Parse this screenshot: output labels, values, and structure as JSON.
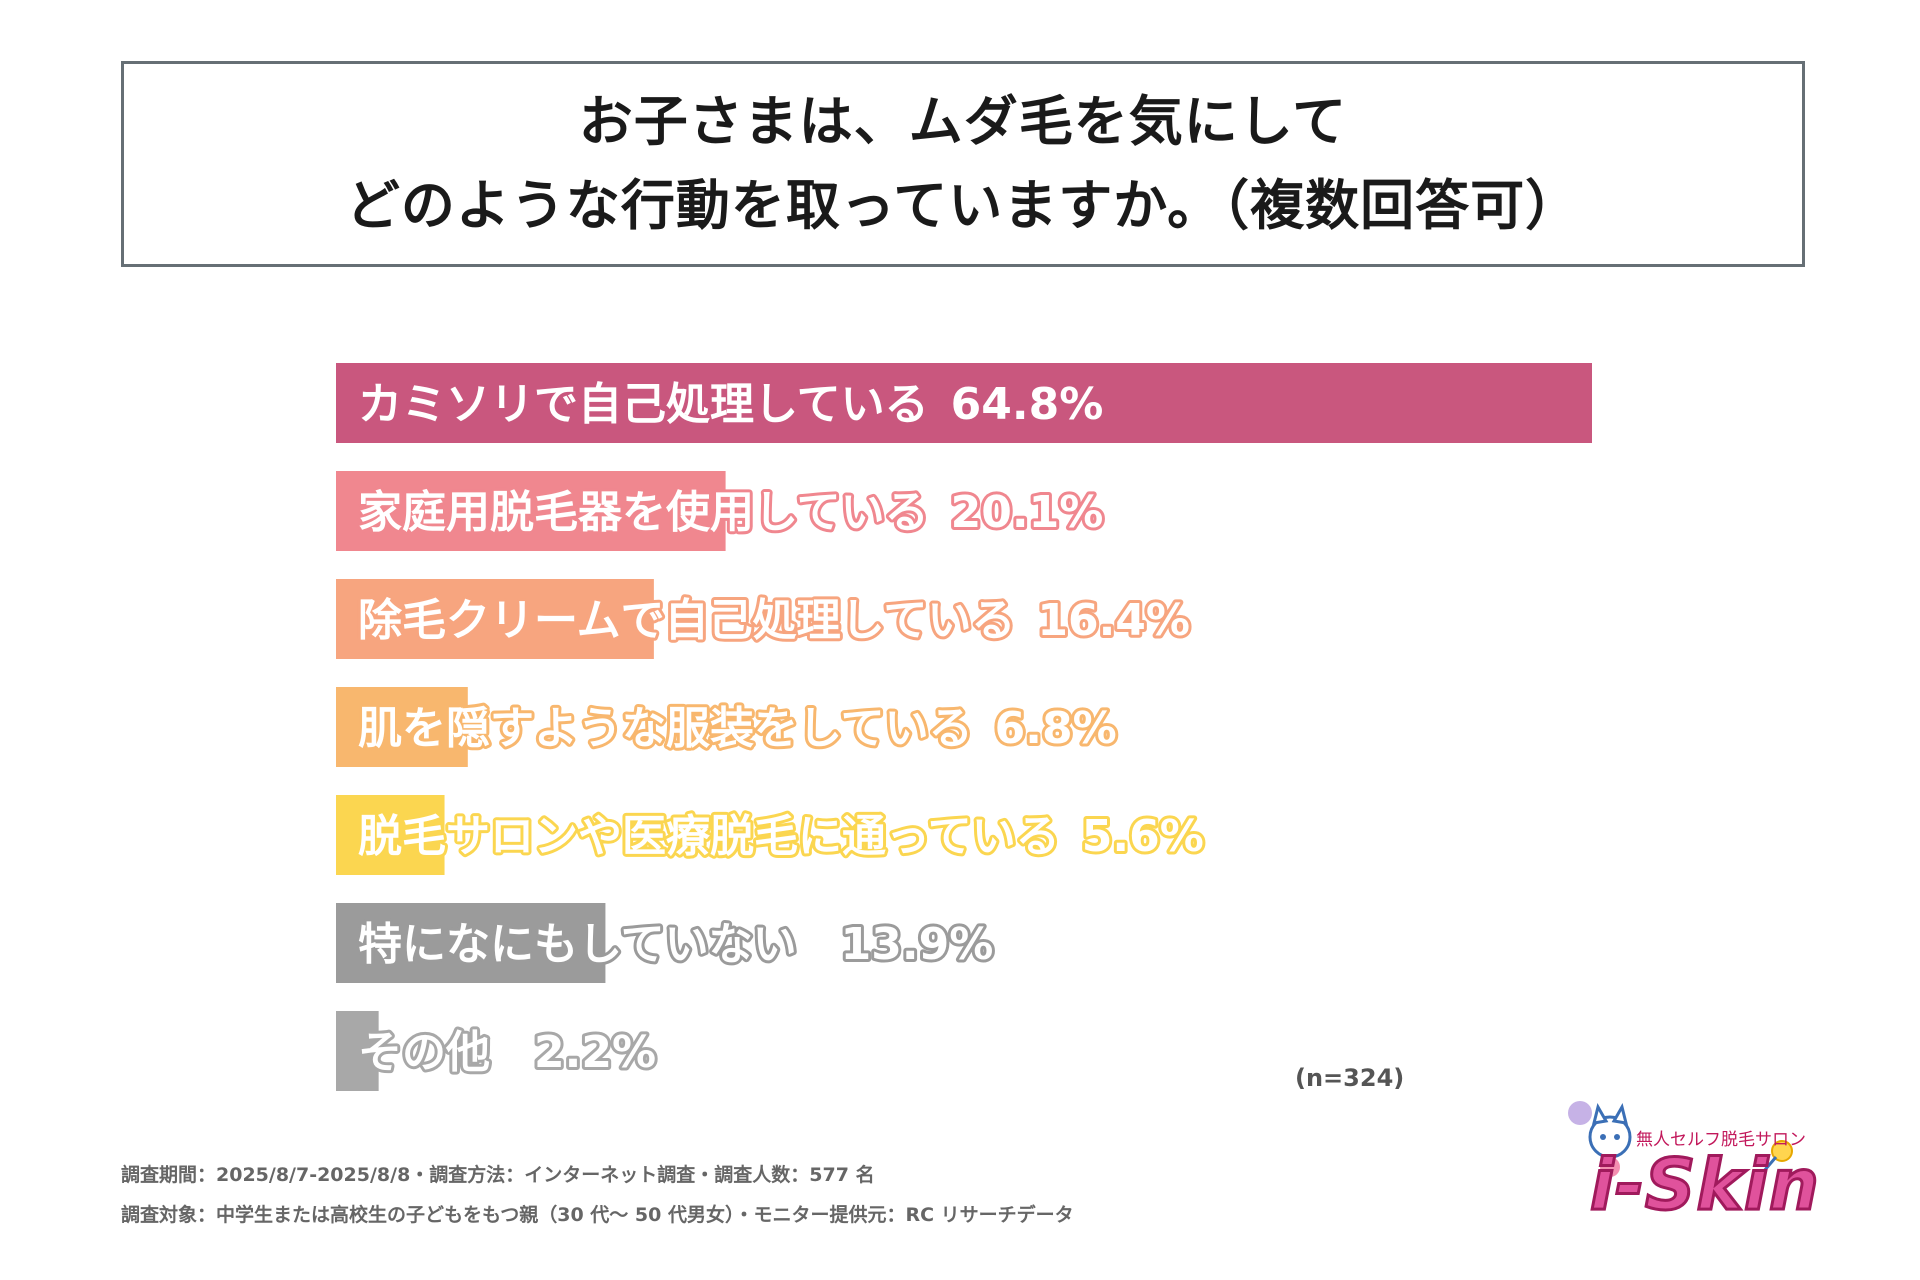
{
  "title": {
    "line1": "お子さまは、ムダ毛を気にして",
    "line2": "どのような行動を取っていますか。（複数回答可）"
  },
  "chart_data": {
    "type": "bar",
    "orientation": "horizontal",
    "categories": [
      "カミソリで自己処理している",
      "家庭用脱毛器を使用している",
      "除毛クリームで自己処理している",
      "肌を隠すような服装をしている",
      "脱毛サロンや医療脱毛に通っている",
      "特になにもしていない",
      "その他"
    ],
    "values": [
      64.8,
      20.1,
      16.4,
      6.8,
      5.6,
      13.9,
      2.2
    ],
    "value_labels": [
      "64.8%",
      "20.1%",
      "16.4%",
      "6.8%",
      "5.6%",
      "13.9%",
      "2.2%"
    ],
    "colors": [
      "#c9577e",
      "#f0878f",
      "#f7a57f",
      "#f8b76e",
      "#fbd650",
      "#9b9b9b",
      "#a8a8a8"
    ],
    "xlim": [
      0,
      100
    ],
    "grid": false
  },
  "sample_size": "(n=324)",
  "footnotes": [
    "調査期間：2025/8/7-2025/8/8・調査方法：インターネット調査・調査人数：577 名",
    "調査対象：中学生または高校生の子どもをもつ親（30 代～ 50 代男女）・モニター提供元：RC リサーチデータ"
  ],
  "logo": {
    "tagline": "無人セルフ脱毛サロン",
    "name": "i-Skin"
  }
}
